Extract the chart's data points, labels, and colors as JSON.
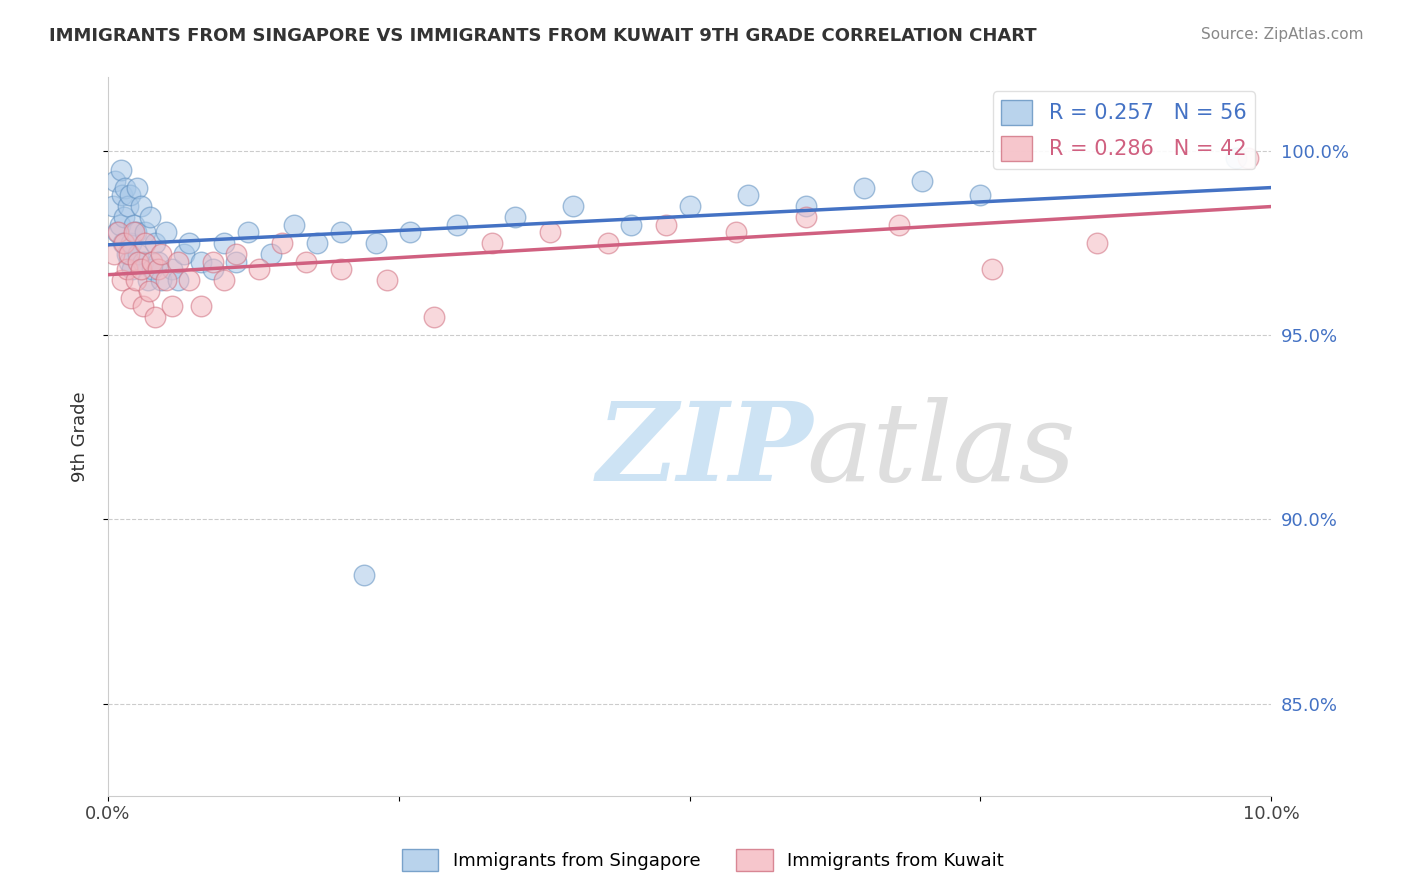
{
  "title": "IMMIGRANTS FROM SINGAPORE VS IMMIGRANTS FROM KUWAIT 9TH GRADE CORRELATION CHART",
  "source": "Source: ZipAtlas.com",
  "ylabel": "9th Grade",
  "xlim": [
    0.0,
    10.0
  ],
  "ylim": [
    82.5,
    102.0
  ],
  "x_tick_positions": [
    0.0,
    2.5,
    5.0,
    7.5,
    10.0
  ],
  "x_tick_labels": [
    "0.0%",
    "",
    "",
    "",
    "10.0%"
  ],
  "y_ticks_right": [
    85.0,
    90.0,
    95.0,
    100.0
  ],
  "y_tick_labels_right": [
    "85.0%",
    "90.0%",
    "95.0%",
    "100.0%"
  ],
  "singapore_color": "#a8c8e8",
  "kuwait_color": "#f4b8c0",
  "singapore_edge_color": "#6090c0",
  "kuwait_edge_color": "#d07080",
  "singapore_line_color": "#4472c4",
  "kuwait_line_color": "#d06080",
  "grid_color": "#cccccc",
  "background_color": "#ffffff",
  "singapore_R": 0.257,
  "singapore_N": 56,
  "kuwait_R": 0.286,
  "kuwait_N": 42,
  "singapore_x": [
    0.04,
    0.06,
    0.08,
    0.1,
    0.11,
    0.12,
    0.13,
    0.14,
    0.15,
    0.16,
    0.17,
    0.18,
    0.19,
    0.2,
    0.21,
    0.22,
    0.24,
    0.25,
    0.26,
    0.28,
    0.3,
    0.32,
    0.34,
    0.36,
    0.38,
    0.4,
    0.43,
    0.46,
    0.5,
    0.55,
    0.6,
    0.65,
    0.7,
    0.8,
    0.9,
    1.0,
    1.1,
    1.2,
    1.4,
    1.6,
    1.8,
    2.0,
    2.3,
    2.6,
    3.0,
    3.5,
    4.0,
    4.5,
    5.0,
    5.5,
    6.0,
    6.5,
    7.0,
    7.5,
    2.2,
    9.7
  ],
  "singapore_y": [
    98.5,
    99.2,
    97.8,
    98.0,
    99.5,
    98.8,
    97.5,
    98.2,
    99.0,
    97.2,
    98.5,
    97.0,
    98.8,
    97.5,
    96.8,
    98.0,
    97.8,
    99.0,
    97.2,
    98.5,
    97.0,
    97.8,
    96.5,
    98.2,
    96.8,
    97.5,
    97.0,
    96.5,
    97.8,
    96.8,
    96.5,
    97.2,
    97.5,
    97.0,
    96.8,
    97.5,
    97.0,
    97.8,
    97.2,
    98.0,
    97.5,
    97.8,
    97.5,
    97.8,
    98.0,
    98.2,
    98.5,
    98.0,
    98.5,
    98.8,
    98.5,
    99.0,
    99.2,
    98.8,
    88.5,
    99.8
  ],
  "kuwait_x": [
    0.05,
    0.09,
    0.12,
    0.14,
    0.16,
    0.18,
    0.2,
    0.22,
    0.24,
    0.26,
    0.28,
    0.3,
    0.32,
    0.35,
    0.38,
    0.4,
    0.43,
    0.46,
    0.5,
    0.55,
    0.6,
    0.7,
    0.8,
    0.9,
    1.0,
    1.1,
    1.3,
    1.5,
    1.7,
    2.0,
    2.4,
    2.8,
    3.3,
    3.8,
    4.3,
    4.8,
    5.4,
    6.0,
    6.8,
    7.6,
    8.5,
    9.8
  ],
  "kuwait_y": [
    97.2,
    97.8,
    96.5,
    97.5,
    96.8,
    97.2,
    96.0,
    97.8,
    96.5,
    97.0,
    96.8,
    95.8,
    97.5,
    96.2,
    97.0,
    95.5,
    96.8,
    97.2,
    96.5,
    95.8,
    97.0,
    96.5,
    95.8,
    97.0,
    96.5,
    97.2,
    96.8,
    97.5,
    97.0,
    96.8,
    96.5,
    95.5,
    97.5,
    97.8,
    97.5,
    98.0,
    97.8,
    98.2,
    98.0,
    96.8,
    97.5,
    99.8
  ]
}
